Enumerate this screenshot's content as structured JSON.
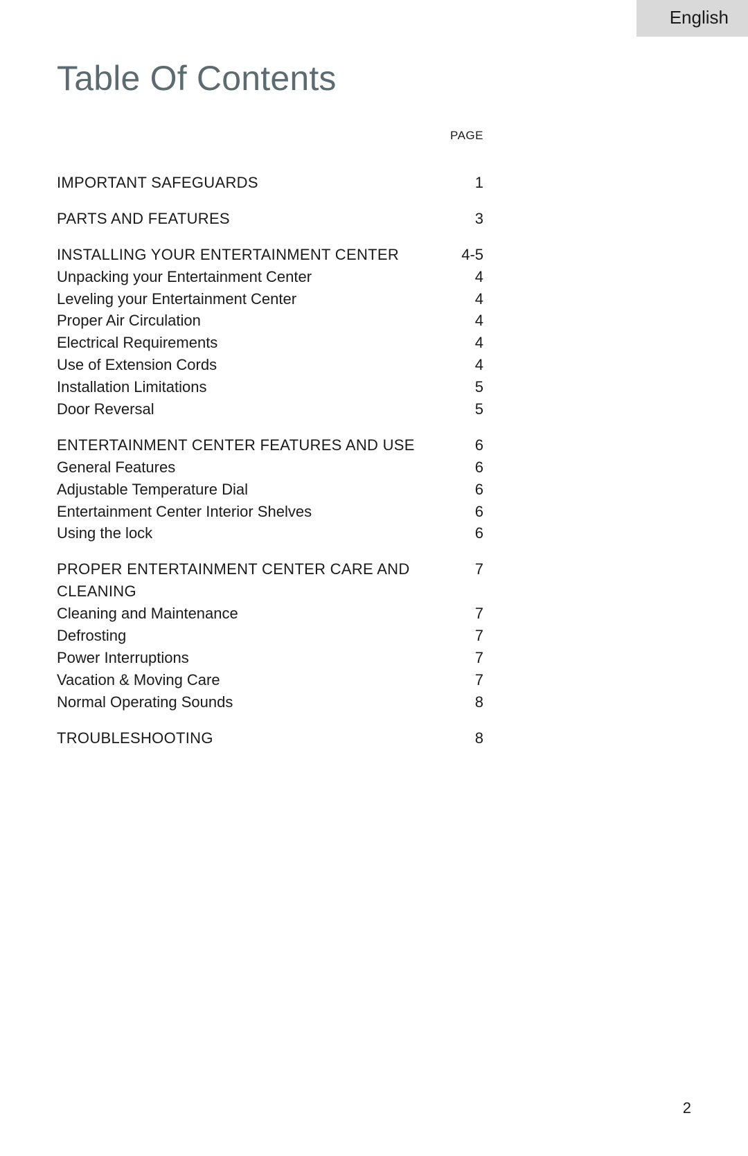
{
  "language_tab": "English",
  "title": "Table Of Contents",
  "page_column_label": "PAGE",
  "page_number": "2",
  "colors": {
    "title_color": "#5b6b6f",
    "text_color": "#1a1a1a",
    "tab_bg": "#d9d9d9",
    "background": "#ffffff"
  },
  "typography": {
    "title_fontsize_pt": 38,
    "body_fontsize_pt": 16,
    "page_label_fontsize_pt": 13,
    "font_family": "sans-serif"
  },
  "sections": [
    {
      "heading": {
        "label": "IMPORTANT SAFEGUARDS",
        "page": "1"
      },
      "items": []
    },
    {
      "heading": {
        "label": "PARTS AND FEATURES",
        "page": "3"
      },
      "items": []
    },
    {
      "heading": {
        "label": "INSTALLING YOUR ENTERTAINMENT CENTER",
        "page": "4-5"
      },
      "items": [
        {
          "label": "Unpacking your Entertainment Center",
          "page": "4"
        },
        {
          "label": "Leveling your Entertainment Center",
          "page": "4"
        },
        {
          "label": "Proper Air Circulation",
          "page": "4"
        },
        {
          "label": "Electrical Requirements",
          "page": "4"
        },
        {
          "label": "Use of Extension Cords",
          "page": "4"
        },
        {
          "label": "Installation Limitations",
          "page": "5"
        },
        {
          "label": "Door Reversal",
          "page": "5"
        }
      ]
    },
    {
      "heading": {
        "label": "ENTERTAINMENT CENTER FEATURES AND USE",
        "page": "6"
      },
      "items": [
        {
          "label": "General Features",
          "page": "6"
        },
        {
          "label": "Adjustable Temperature Dial",
          "page": "6"
        },
        {
          "label": "Entertainment Center Interior Shelves",
          "page": "6"
        },
        {
          "label": "Using the lock",
          "page": "6"
        }
      ]
    },
    {
      "heading": {
        "label": "PROPER ENTERTAINMENT CENTER CARE AND CLEANING",
        "page": "7"
      },
      "items": [
        {
          "label": "Cleaning and Maintenance",
          "page": "7"
        },
        {
          "label": "Defrosting",
          "page": "7"
        },
        {
          "label": "Power Interruptions",
          "page": "7"
        },
        {
          "label": "Vacation & Moving Care",
          "page": "7"
        },
        {
          "label": "Normal Operating Sounds",
          "page": "8"
        }
      ]
    },
    {
      "heading": {
        "label": "TROUBLESHOOTING",
        "page": "8"
      },
      "items": []
    }
  ]
}
